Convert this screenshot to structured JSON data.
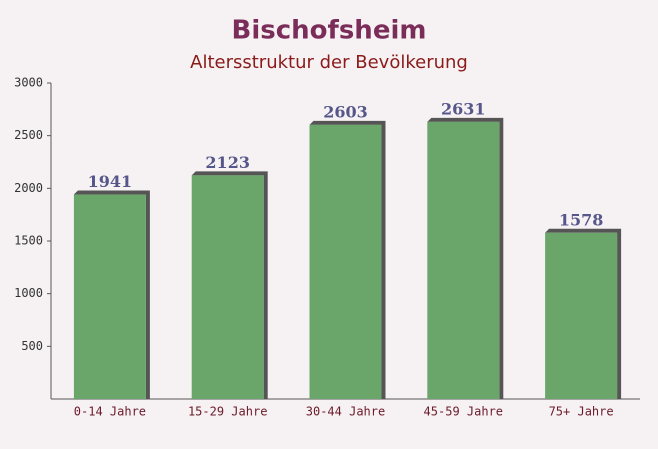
{
  "chart_data": {
    "type": "bar",
    "title": "Bischofsheim",
    "subtitle": "Altersstruktur der Bevölkerung",
    "categories": [
      "0-14 Jahre",
      "15-29 Jahre",
      "30-44 Jahre",
      "45-59 Jahre",
      "75+ Jahre"
    ],
    "values": [
      1941,
      2123,
      2603,
      2631,
      1578
    ],
    "color": "#6aa66a",
    "ylim": [
      0,
      3000
    ],
    "yticks": [
      500,
      1000,
      1500,
      2000,
      2500,
      3000
    ],
    "grid": false
  }
}
